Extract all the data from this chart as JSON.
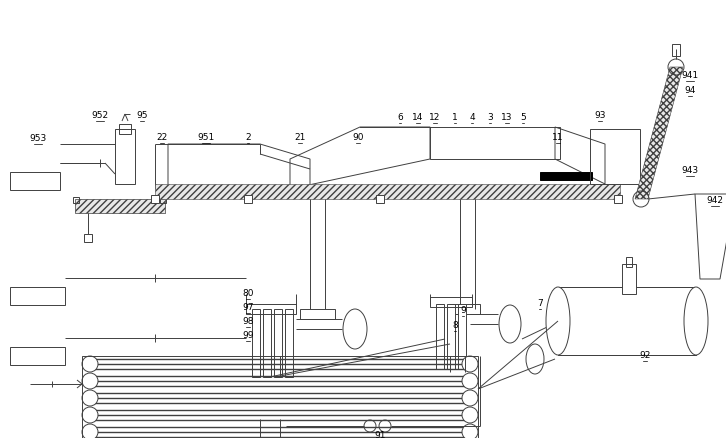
{
  "bg_color": "#ffffff",
  "line_color": "#404040",
  "figsize": [
    7.26,
    4.39
  ],
  "dpi": 100
}
